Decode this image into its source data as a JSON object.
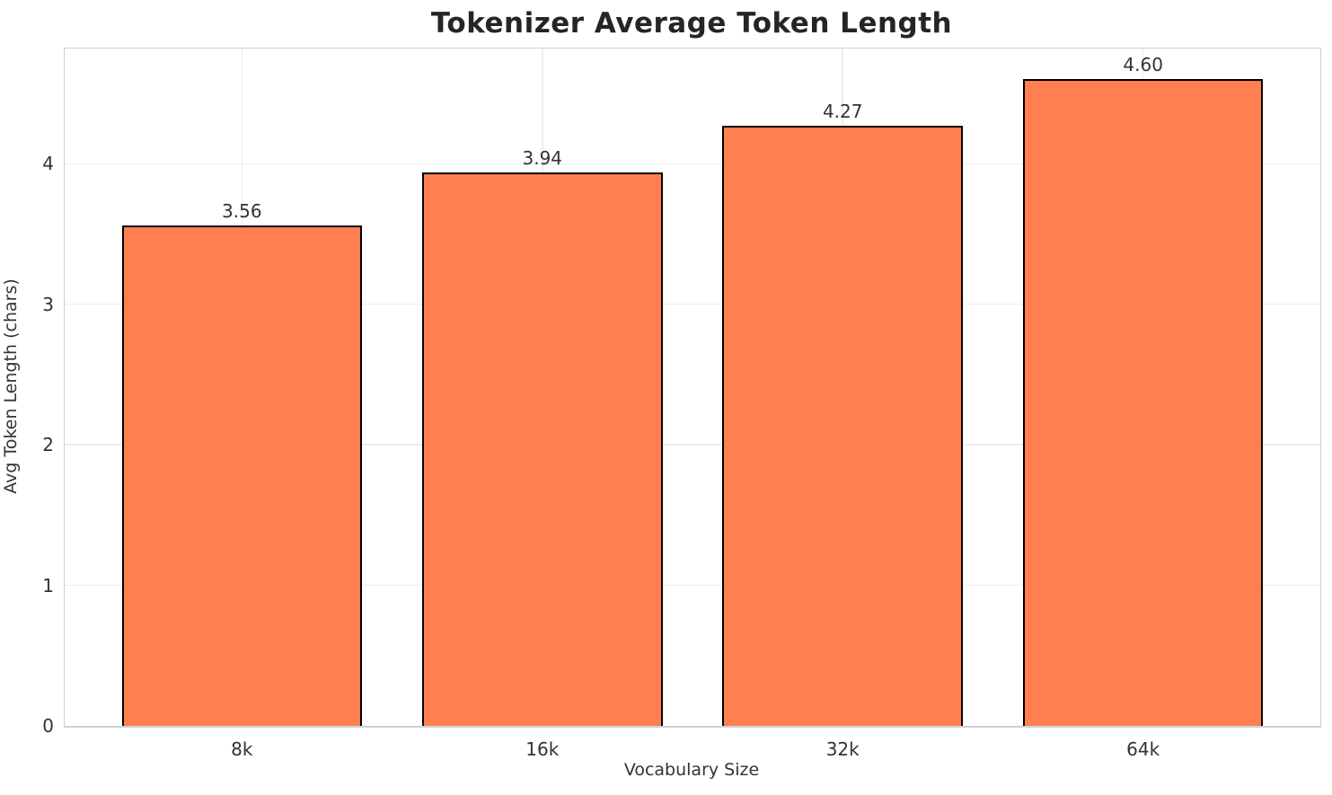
{
  "chart_data": {
    "type": "bar",
    "title": "Tokenizer Average Token Length",
    "xlabel": "Vocabulary Size",
    "ylabel": "Avg Token Length (chars)",
    "categories": [
      "8k",
      "16k",
      "32k",
      "64k"
    ],
    "values": [
      3.56,
      3.94,
      4.27,
      4.6
    ],
    "value_labels": [
      "3.56",
      "3.94",
      "4.27",
      "4.60"
    ],
    "yticks": [
      0,
      1,
      2,
      3,
      4
    ],
    "ylim": [
      0,
      4.82
    ],
    "xlim": [
      -0.59,
      3.59
    ],
    "bar_width": 0.8,
    "grid": true,
    "legend": "none",
    "bar_color": "#FF7F50",
    "bar_edge_color": "#000000",
    "grid_color": "#ededed",
    "spine_color": "#d0d0d0",
    "text_color": "#333333",
    "title_color": "#252525"
  }
}
